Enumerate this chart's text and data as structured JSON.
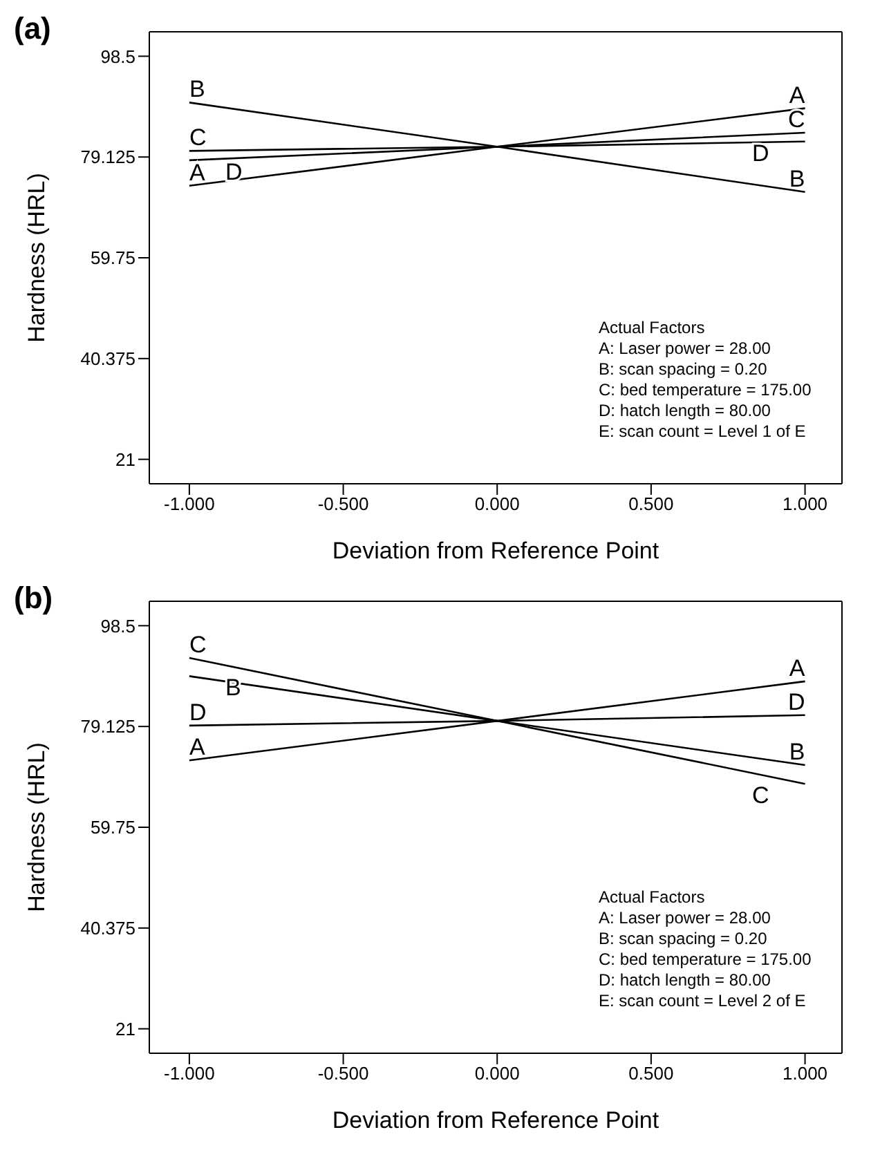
{
  "chart_data": [
    {
      "type": "line",
      "title": "(a)",
      "xlabel": "Deviation from Reference Point",
      "ylabel": "Hardness (HRL)",
      "xlim": [
        -1.13,
        1.12
      ],
      "ylim": [
        16.3,
        103.2
      ],
      "xticks": [
        {
          "value": -1,
          "label": "-1.000"
        },
        {
          "value": -0.5,
          "label": "-0.500"
        },
        {
          "value": 0,
          "label": "0.000"
        },
        {
          "value": 0.5,
          "label": "0.500"
        },
        {
          "value": 1,
          "label": "1.000"
        }
      ],
      "yticks": [
        21,
        40.375,
        59.75,
        79.125,
        98.5
      ],
      "series": [
        {
          "name": "A",
          "color": "#000000",
          "x": [
            -1,
            0,
            1
          ],
          "values": [
            73.6,
            81.1,
            88.5
          ]
        },
        {
          "name": "B",
          "color": "#000000",
          "x": [
            -1,
            0,
            1
          ],
          "values": [
            89.6,
            81.1,
            72.4
          ]
        },
        {
          "name": "C",
          "color": "#000000",
          "x": [
            -1,
            0,
            1
          ],
          "values": [
            80.3,
            81.1,
            83.8
          ]
        },
        {
          "name": "D",
          "color": "#000000",
          "x": [
            -1,
            0,
            1
          ],
          "values": [
            78.5,
            81.1,
            82.1
          ]
        }
      ],
      "annotations": [
        "Actual Factors",
        "A: Laser power = 28.00",
        "B: scan spacing = 0.20",
        "C: bed temperature = 175.00",
        "D: hatch length = 80.00",
        "E: scan count = Level 1 of E"
      ]
    },
    {
      "type": "line",
      "title": "(b)",
      "xlabel": "Deviation from Reference Point",
      "ylabel": "Hardness (HRL)",
      "xlim": [
        -1.13,
        1.12
      ],
      "ylim": [
        16.3,
        103.2
      ],
      "xticks": [
        {
          "value": -1,
          "label": "-1.000"
        },
        {
          "value": -0.5,
          "label": "-0.500"
        },
        {
          "value": 0,
          "label": "0.000"
        },
        {
          "value": 0.5,
          "label": "0.500"
        },
        {
          "value": 1,
          "label": "1.000"
        }
      ],
      "yticks": [
        21,
        40.375,
        59.75,
        79.125,
        98.5
      ],
      "series": [
        {
          "name": "A",
          "color": "#000000",
          "x": [
            -1,
            0,
            1
          ],
          "values": [
            72.6,
            80.2,
            87.8
          ]
        },
        {
          "name": "B",
          "color": "#000000",
          "x": [
            -1,
            0,
            1
          ],
          "values": [
            88.8,
            80.2,
            71.7
          ]
        },
        {
          "name": "C",
          "color": "#000000",
          "x": [
            -1,
            0,
            1
          ],
          "values": [
            92.3,
            80.2,
            68.1
          ]
        },
        {
          "name": "D",
          "color": "#000000",
          "x": [
            -1,
            0,
            1
          ],
          "values": [
            79.3,
            80.2,
            81.3
          ]
        }
      ],
      "annotations": [
        "Actual Factors",
        "A: Laser power = 28.00",
        "B: scan spacing = 0.20",
        "C: bed temperature = 175.00",
        "D: hatch length = 80.00",
        "E: scan count = Level 2 of E"
      ]
    }
  ]
}
